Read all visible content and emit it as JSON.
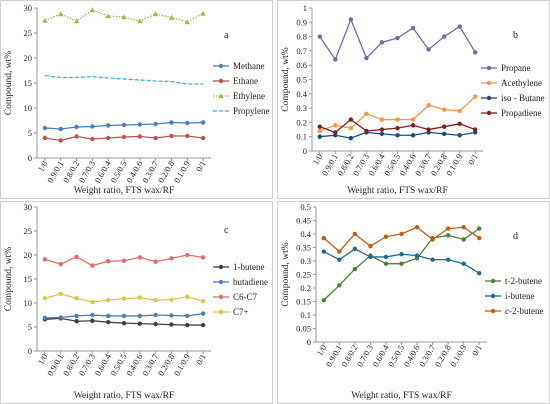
{
  "chart_data": [
    {
      "panel_label": "a",
      "type": "line",
      "title": "",
      "xlabel": "Weight ratio, FTS wax/RF",
      "ylabel": "Compound, wt%",
      "ylim": [
        0,
        30
      ],
      "yticks": [
        "0",
        "5",
        "10",
        "15",
        "20",
        "25",
        "30"
      ],
      "categories": [
        "1/0",
        "0.9/0.1",
        "0.8/0.2",
        "0.7/0.3",
        "0.6/0.4",
        "0.5/0.5",
        "0.4/0.6",
        "0.3/0.7",
        "0.2/0.8",
        "0.1/0.9",
        "0/1"
      ],
      "legend_position": "right",
      "series": [
        {
          "name": "Methane",
          "color": "#4a7ebb",
          "marker": "circle",
          "dash": "solid",
          "values": [
            6.0,
            5.8,
            6.2,
            6.3,
            6.5,
            6.6,
            6.7,
            6.8,
            7.1,
            7.0,
            7.1
          ]
        },
        {
          "name": "Ethane",
          "color": "#c0504d",
          "marker": "circle",
          "dash": "solid",
          "values": [
            4.0,
            3.5,
            4.3,
            3.8,
            4.0,
            4.2,
            4.3,
            4.0,
            4.4,
            4.4,
            4.0
          ]
        },
        {
          "name": "Ethylene",
          "color": "#9bbb59",
          "marker": "triangle",
          "dash": "dot",
          "values": [
            27.5,
            28.8,
            27.4,
            29.6,
            28.4,
            28.2,
            27.4,
            28.8,
            28.1,
            27.2,
            28.9
          ]
        },
        {
          "name": "Propylene",
          "color": "#4bacc6",
          "marker": "none",
          "dash": "dash",
          "values": [
            16.5,
            16.1,
            16.1,
            16.3,
            16.0,
            15.8,
            15.6,
            15.4,
            15.3,
            14.8,
            14.8
          ]
        }
      ]
    },
    {
      "panel_label": "b",
      "type": "line",
      "title": "",
      "xlabel": "Weight ratio, FTS wax/RF",
      "ylabel": "Compound, wt%",
      "ylim": [
        0,
        1
      ],
      "yticks": [
        "0",
        "0.1",
        "0.2",
        "0.3",
        "0.4",
        "0.5",
        "0.6",
        "0.7",
        "0.8",
        "0.9",
        "1"
      ],
      "categories": [
        "1/0",
        "0.9/0.1",
        "0.8/0.2",
        "0.7/0.3",
        "0.6/0.4",
        "0.5/0.5",
        "0.4/0.6",
        "0.3/0.7",
        "0.2/0.8",
        "0.1/0.9",
        "0/1"
      ],
      "legend_position": "right",
      "series": [
        {
          "name": "Propane",
          "color": "#8064a2",
          "marker": "circle",
          "dash": "solid",
          "values": [
            0.8,
            0.64,
            0.92,
            0.65,
            0.76,
            0.79,
            0.86,
            0.71,
            0.8,
            0.87,
            0.69
          ]
        },
        {
          "name": "Acethylene",
          "color": "#f79646",
          "marker": "circle",
          "dash": "solid",
          "values": [
            0.14,
            0.18,
            0.16,
            0.26,
            0.22,
            0.22,
            0.22,
            0.32,
            0.29,
            0.28,
            0.38
          ]
        },
        {
          "name": "iso - Butane",
          "color": "#1f497d",
          "marker": "circle",
          "dash": "solid",
          "values": [
            0.1,
            0.11,
            0.09,
            0.13,
            0.12,
            0.11,
            0.11,
            0.13,
            0.12,
            0.11,
            0.13
          ]
        },
        {
          "name": "Propadiene",
          "color": "#7f1f1f",
          "marker": "circle",
          "dash": "solid",
          "values": [
            0.17,
            0.13,
            0.22,
            0.14,
            0.15,
            0.16,
            0.18,
            0.15,
            0.17,
            0.19,
            0.15
          ]
        }
      ]
    },
    {
      "panel_label": "c",
      "type": "line",
      "title": "",
      "xlabel": "Weight ratio, FTS wax/RF",
      "ylabel": "Compound, wt%",
      "ylim": [
        0,
        30
      ],
      "yticks": [
        "0",
        "5",
        "10",
        "15",
        "20",
        "25",
        "30"
      ],
      "categories": [
        "1/0",
        "0.9/0.1",
        "0.8/0.2",
        "0.7/0.3",
        "0.6/0.4",
        "0.5/0.5",
        "0.4/0.6",
        "0.3/0.7",
        "0.2/0.8",
        "0.1/0.9",
        "0/1"
      ],
      "legend_position": "right",
      "series": [
        {
          "name": "1-butene",
          "color": "#404040",
          "marker": "circle",
          "dash": "solid",
          "values": [
            6.6,
            6.8,
            6.2,
            6.3,
            6.0,
            5.8,
            5.7,
            5.6,
            5.5,
            5.4,
            5.4
          ]
        },
        {
          "name": "butadiene",
          "color": "#4a7ebb",
          "marker": "circle",
          "dash": "solid",
          "values": [
            6.9,
            7.0,
            7.3,
            7.5,
            7.3,
            7.3,
            7.3,
            7.5,
            7.4,
            7.3,
            7.8
          ]
        },
        {
          "name": "C6-C7",
          "color": "#e46c6c",
          "marker": "circle",
          "dash": "solid",
          "values": [
            19.1,
            18.1,
            19.6,
            17.8,
            18.7,
            18.8,
            19.5,
            18.6,
            19.3,
            20.0,
            19.5
          ]
        },
        {
          "name": "C7+",
          "color": "#d7c84a",
          "marker": "circle",
          "dash": "solid",
          "values": [
            11.0,
            11.9,
            11.0,
            10.2,
            10.6,
            10.9,
            11.1,
            10.6,
            10.7,
            11.3,
            10.4
          ]
        }
      ]
    },
    {
      "panel_label": "d",
      "type": "line",
      "title": "",
      "xlabel": "Weight ratio, FTS wax/RF",
      "ylabel": "Compound, wt%",
      "ylim": [
        0,
        0.5
      ],
      "yticks": [
        "0",
        "0.05",
        "0.1",
        "0.15",
        "0.2",
        "0.25",
        "0.3",
        "0.35",
        "0.4",
        "0.45",
        "0.5"
      ],
      "categories": [
        "1/0",
        "0.9/0.1",
        "0.8/0.2",
        "0.7/0.3",
        "0.6/0.4",
        "0.5/0.5",
        "0.4/0.6",
        "0.3/0.7",
        "0.2/0.8",
        "0.1/0.9",
        "0/1"
      ],
      "legend_position": "right",
      "series": [
        {
          "name": "t-2-butene",
          "color": "#4f7f3a",
          "marker": "circle",
          "dash": "solid",
          "values": [
            0.155,
            0.21,
            0.27,
            0.32,
            0.29,
            0.29,
            0.31,
            0.385,
            0.395,
            0.38,
            0.42
          ]
        },
        {
          "name": "i-butene",
          "color": "#1f6b8a",
          "marker": "circle",
          "dash": "solid",
          "values": [
            0.335,
            0.305,
            0.345,
            0.315,
            0.315,
            0.325,
            0.32,
            0.305,
            0.305,
            0.29,
            0.255
          ]
        },
        {
          "name": "c-2-butene",
          "color": "#c55a11",
          "marker": "circle",
          "dash": "solid",
          "values": [
            0.385,
            0.335,
            0.4,
            0.355,
            0.39,
            0.4,
            0.425,
            0.38,
            0.42,
            0.425,
            0.385
          ]
        }
      ]
    }
  ]
}
